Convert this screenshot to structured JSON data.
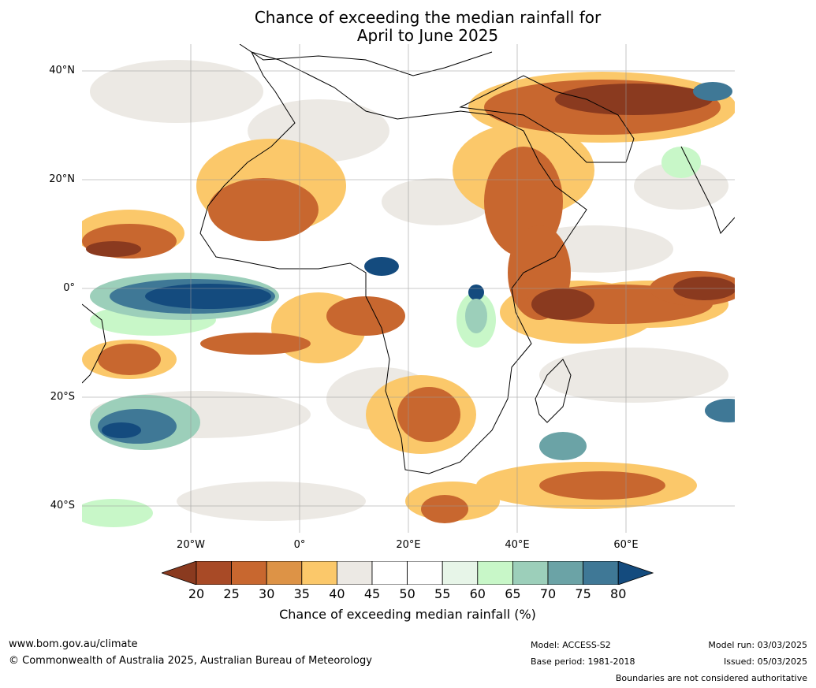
{
  "title_line1": "Chance of exceeding the median rainfall for",
  "title_line2": "April to June 2025",
  "lat_labels": [
    "40°N",
    "20°N",
    "0°",
    "20°S",
    "40°S"
  ],
  "lon_labels": [
    "20°W",
    "0°",
    "20°E",
    "40°E",
    "60°E"
  ],
  "colorbar": {
    "label": "Chance of exceeding median rainfall (%)",
    "ticks": [
      "20",
      "25",
      "30",
      "35",
      "40",
      "45",
      "50",
      "55",
      "60",
      "65",
      "70",
      "75",
      "80"
    ],
    "colors": [
      "#8a3a1f",
      "#a84a26",
      "#c8672f",
      "#dd9346",
      "#fbc86a",
      "#ece9e4",
      "#ffffff",
      "#ffffff",
      "#e7f5e8",
      "#c8f7c8",
      "#9ccfba",
      "#6ba3a6",
      "#3f7896",
      "#144b7e"
    ]
  },
  "footer": {
    "website": "www.bom.gov.au/climate",
    "copyright": "© Commonwealth of Australia 2025, Australian Bureau of Meteorology",
    "model": "Model: ACCESS-S2",
    "base_period": "Base period: 1981-2018",
    "model_run": "Model run: 03/03/2025",
    "issued": "Issued: 05/03/2025",
    "boundaries": "Boundaries are not considered authoritative"
  }
}
